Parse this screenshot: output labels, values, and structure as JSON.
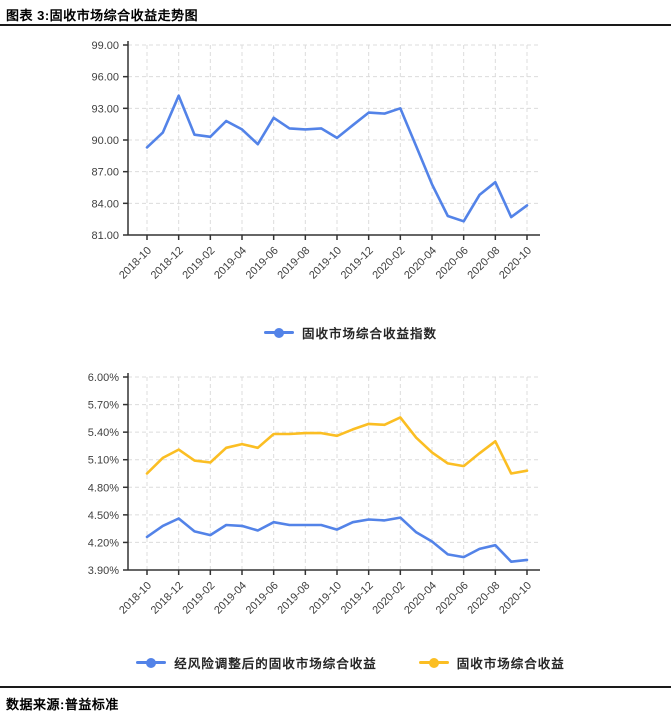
{
  "header": {
    "title": "图表 3:固收市场综合收益走势图"
  },
  "footer": {
    "source": "数据来源:普益标准"
  },
  "colors": {
    "blue_series": "#5383E8",
    "yellow_series": "#FBBE23",
    "axis_line": "#333333",
    "tick_text": "#404040",
    "gridline": "#DCDCDC",
    "divider": "#1a1a1a"
  },
  "chart_data": [
    {
      "type": "line",
      "title": "",
      "x": [
        "2018-10",
        "2018-11",
        "2018-12",
        "2019-01",
        "2019-02",
        "2019-03",
        "2019-04",
        "2019-05",
        "2019-06",
        "2019-07",
        "2019-08",
        "2019-09",
        "2019-10",
        "2019-11",
        "2019-12",
        "2020-01",
        "2020-02",
        "2020-03",
        "2020-04",
        "2020-05",
        "2020-06",
        "2020-07",
        "2020-08",
        "2020-09",
        "2020-10"
      ],
      "xtick_labels": [
        "2018-10",
        "2018-12",
        "2019-02",
        "2019-04",
        "2019-06",
        "2019-08",
        "2019-10",
        "2019-12",
        "2020-02",
        "2020-04",
        "2020-06",
        "2020-08",
        "2020-10"
      ],
      "ylim": [
        81,
        99
      ],
      "yticks": [
        81,
        84,
        87,
        90,
        93,
        96,
        99
      ],
      "ytick_labels": [
        "81.00",
        "84.00",
        "87.00",
        "90.00",
        "93.00",
        "96.00",
        "99.00"
      ],
      "grid": true,
      "legend_position": "bottom",
      "series": [
        {
          "name": "固收市场综合收益指数",
          "color_key": "blue_series",
          "values": [
            89.3,
            90.7,
            94.2,
            90.5,
            90.3,
            91.8,
            91.0,
            89.6,
            92.1,
            91.1,
            91.0,
            91.1,
            90.2,
            91.4,
            92.6,
            92.5,
            93.0,
            89.4,
            85.8,
            82.8,
            82.3,
            84.8,
            86.0,
            82.7,
            83.8
          ]
        }
      ]
    },
    {
      "type": "line",
      "title": "",
      "x": [
        "2018-10",
        "2018-11",
        "2018-12",
        "2019-01",
        "2019-02",
        "2019-03",
        "2019-04",
        "2019-05",
        "2019-06",
        "2019-07",
        "2019-08",
        "2019-09",
        "2019-10",
        "2019-11",
        "2019-12",
        "2020-01",
        "2020-02",
        "2020-03",
        "2020-04",
        "2020-05",
        "2020-06",
        "2020-07",
        "2020-08",
        "2020-09",
        "2020-10"
      ],
      "xtick_labels": [
        "2018-10",
        "2018-12",
        "2019-02",
        "2019-04",
        "2019-06",
        "2019-08",
        "2019-10",
        "2019-12",
        "2020-02",
        "2020-04",
        "2020-06",
        "2020-08",
        "2020-10"
      ],
      "ylim": [
        3.9,
        6.0
      ],
      "yticks": [
        3.9,
        4.2,
        4.5,
        4.8,
        5.1,
        5.4,
        5.7,
        6.0
      ],
      "ytick_labels": [
        "3.90%",
        "4.20%",
        "4.50%",
        "4.80%",
        "5.10%",
        "5.40%",
        "5.70%",
        "6.00%"
      ],
      "grid": true,
      "legend_position": "bottom",
      "series": [
        {
          "name": "经风险调整后的固收市场综合收益",
          "color_key": "blue_series",
          "values": [
            4.26,
            4.38,
            4.46,
            4.32,
            4.28,
            4.39,
            4.38,
            4.33,
            4.42,
            4.39,
            4.39,
            4.39,
            4.34,
            4.42,
            4.45,
            4.44,
            4.47,
            4.31,
            4.21,
            4.07,
            4.04,
            4.13,
            4.17,
            3.99,
            4.01
          ]
        },
        {
          "name": "固收市场综合收益",
          "color_key": "yellow_series",
          "values": [
            4.95,
            5.12,
            5.21,
            5.09,
            5.07,
            5.23,
            5.27,
            5.23,
            5.38,
            5.38,
            5.39,
            5.39,
            5.36,
            5.43,
            5.49,
            5.48,
            5.56,
            5.34,
            5.18,
            5.06,
            5.03,
            5.17,
            5.3,
            4.95,
            4.98
          ]
        }
      ]
    }
  ]
}
